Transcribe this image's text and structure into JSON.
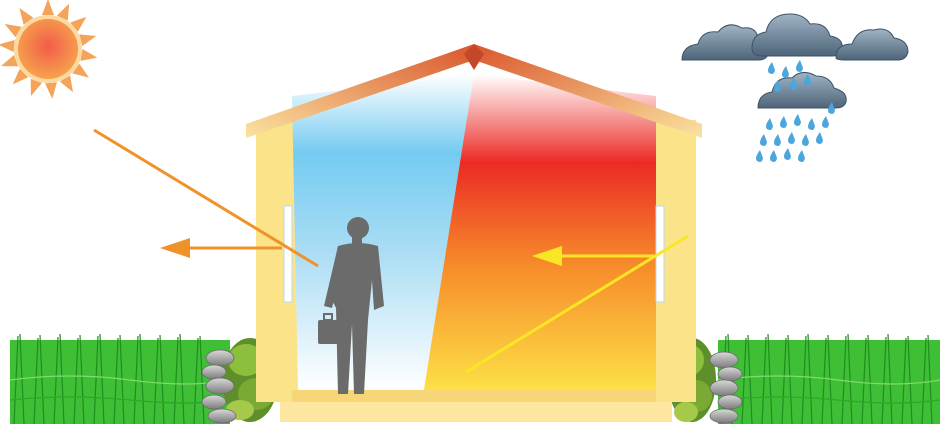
{
  "scene": {
    "icons": {
      "sun": "sun-icon",
      "rain_clouds": "rain-cloud-icon",
      "person": "businessman-with-briefcase-icon",
      "grass": "grass-icon",
      "stones": "stone-icon",
      "shrubs": "shrub-icon"
    },
    "colors": {
      "sun_core": "#f08a4b",
      "sun_rays": "#f4a45a",
      "cloud": "#5d7388",
      "rain": "#4aa6dc",
      "roof": "#d9652b",
      "wall_frame": "#fbe38a",
      "cool_interior_top": "#6fc8f0",
      "cool_interior_bottom": "#ffffff",
      "warm_interior_top": "#ec2a25",
      "warm_interior_bottom": "#fde046",
      "orange_arrow": "#f0922a",
      "yellow_arrow": "#fbe626",
      "grass": "#36b52e",
      "person": "#6b6b6b"
    }
  }
}
